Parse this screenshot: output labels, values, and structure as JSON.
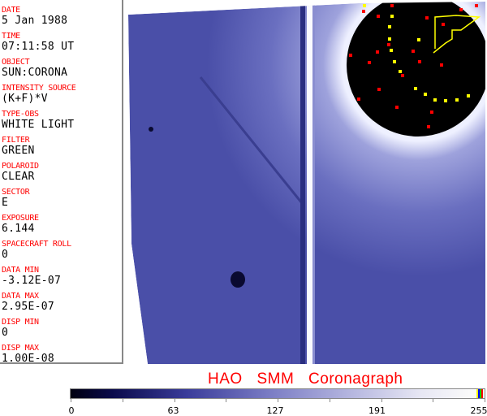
{
  "metadata": [
    {
      "label": "DATE",
      "value": "5 Jan 1988"
    },
    {
      "label": "TIME",
      "value": "07:11:58 UT"
    },
    {
      "label": "OBJECT",
      "value": "SUN:CORONA"
    },
    {
      "label": "INTENSITY SOURCE",
      "value": "(K+F)*V"
    },
    {
      "label": "TYPE-OBS",
      "value": "WHITE LIGHT"
    },
    {
      "label": "FILTER",
      "value": "GREEN"
    },
    {
      "label": "POLAROID",
      "value": "CLEAR"
    },
    {
      "label": "SECTOR",
      "value": "E"
    },
    {
      "label": "EXPOSURE",
      "value": "6.144"
    },
    {
      "label": "SPACECRAFT ROLL",
      "value": "0"
    },
    {
      "label": "DATA MIN",
      "value": "-3.12E-07"
    },
    {
      "label": "DATA MAX",
      "value": "2.95E-07"
    },
    {
      "label": "DISP MIN",
      "value": "0"
    },
    {
      "label": "DISP MAX",
      "value": "1.00E-08"
    }
  ],
  "title": "HAO  SMM Coronagraph",
  "colorbar": {
    "min": 0,
    "max": 255,
    "tick_labels": [
      "0",
      "63",
      "127",
      "191",
      "255"
    ],
    "colors": {
      "low": "#000010",
      "mid": "#7a7cc4",
      "high": "#fafafa",
      "markers": [
        "#ffff00",
        "#0000ff",
        "#00c000",
        "#ff0000"
      ]
    }
  },
  "colors": {
    "label": "#ff0000",
    "value": "#000000",
    "image_base": "#4a4fa8",
    "occulter": "#000000",
    "overlay_red": "#ff0000",
    "overlay_yellow": "#ffff00"
  }
}
